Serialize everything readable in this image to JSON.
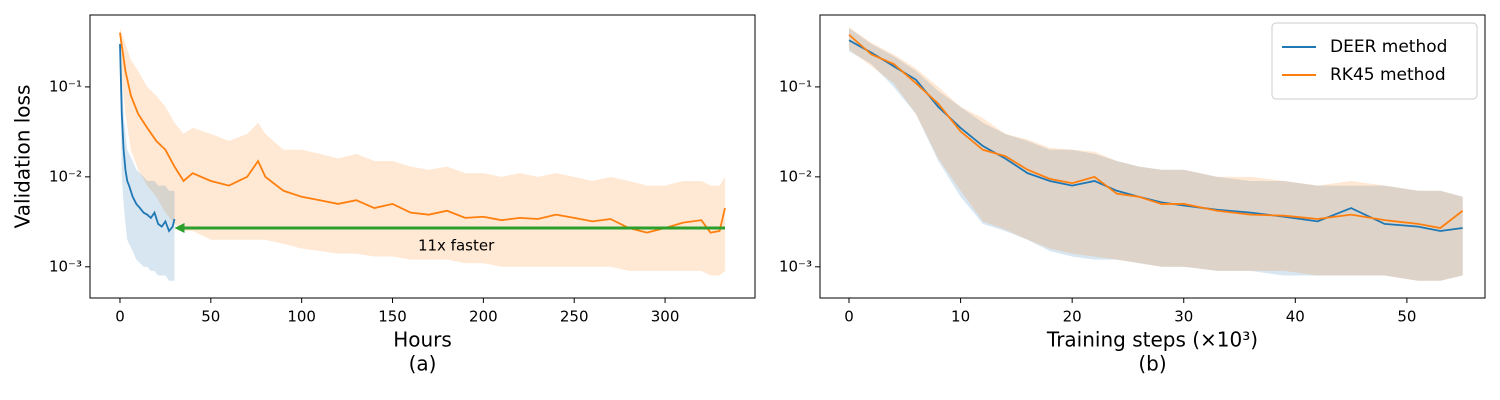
{
  "chart_data": [
    {
      "type": "line",
      "ylabel": "Validation loss",
      "xlabel": "Hours",
      "caption": "(a)",
      "log_y": true,
      "xlim": [
        -16.5,
        349.5
      ],
      "xticks": [
        0,
        50,
        100,
        150,
        200,
        250,
        300
      ],
      "ylim": [
        0.00045,
        0.63
      ],
      "yticks": [
        {
          "value": 0.001,
          "label": "10⁻³"
        },
        {
          "value": 0.01,
          "label": "10⁻²"
        },
        {
          "value": 0.1,
          "label": "10⁻¹"
        }
      ],
      "series": [
        {
          "color": "#ff7f0e",
          "x": [
            0,
            3,
            6,
            10,
            15,
            20,
            25,
            30,
            35,
            40,
            50,
            60,
            70,
            76,
            80,
            90,
            100,
            110,
            120,
            130,
            140,
            150,
            160,
            170,
            180,
            190,
            200,
            210,
            220,
            230,
            240,
            250,
            260,
            270,
            280,
            290,
            300,
            310,
            320,
            325,
            330,
            333
          ],
          "values": [
            0.4,
            0.15,
            0.08,
            0.05,
            0.035,
            0.025,
            0.02,
            0.013,
            0.009,
            0.011,
            0.009,
            0.008,
            0.01,
            0.015,
            0.01,
            0.007,
            0.006,
            0.0055,
            0.005,
            0.0055,
            0.0045,
            0.005,
            0.004,
            0.0038,
            0.0042,
            0.0035,
            0.0036,
            0.0033,
            0.0035,
            0.0034,
            0.0038,
            0.0035,
            0.0032,
            0.0034,
            0.0027,
            0.0024,
            0.0027,
            0.0031,
            0.0033,
            0.0024,
            0.0025,
            0.0045
          ],
          "lower": [
            0.2,
            0.05,
            0.02,
            0.012,
            0.008,
            0.006,
            0.004,
            0.003,
            0.0025,
            0.0025,
            0.002,
            0.002,
            0.002,
            0.002,
            0.002,
            0.0018,
            0.0016,
            0.0015,
            0.0014,
            0.0014,
            0.0013,
            0.0013,
            0.0012,
            0.0012,
            0.0012,
            0.0011,
            0.0011,
            0.001,
            0.001,
            0.001,
            0.001,
            0.001,
            0.001,
            0.001,
            0.0009,
            0.0009,
            0.0009,
            0.0009,
            0.0009,
            0.0008,
            0.0008,
            0.0009
          ],
          "upper": [
            0.45,
            0.3,
            0.2,
            0.15,
            0.1,
            0.08,
            0.06,
            0.04,
            0.03,
            0.035,
            0.03,
            0.025,
            0.03,
            0.04,
            0.03,
            0.02,
            0.02,
            0.018,
            0.016,
            0.018,
            0.015,
            0.015,
            0.013,
            0.012,
            0.013,
            0.011,
            0.011,
            0.01,
            0.011,
            0.01,
            0.011,
            0.01,
            0.009,
            0.01,
            0.009,
            0.008,
            0.008,
            0.009,
            0.009,
            0.008,
            0.008,
            0.01
          ]
        },
        {
          "color": "#1f77b4",
          "x": [
            0,
            1,
            2,
            3,
            4,
            5,
            7,
            9,
            11,
            13,
            15,
            17,
            19,
            21,
            23,
            25,
            27,
            29,
            30
          ],
          "values": [
            0.3,
            0.05,
            0.02,
            0.012,
            0.009,
            0.008,
            0.006,
            0.005,
            0.0045,
            0.004,
            0.0038,
            0.0035,
            0.004,
            0.003,
            0.0028,
            0.0032,
            0.0025,
            0.0028,
            0.0034
          ],
          "lower": [
            0.15,
            0.01,
            0.005,
            0.003,
            0.002,
            0.0018,
            0.0015,
            0.0012,
            0.0011,
            0.001,
            0.001,
            0.0009,
            0.0009,
            0.0008,
            0.0008,
            0.0008,
            0.0007,
            0.0007,
            0.0007
          ],
          "upper": [
            0.4,
            0.15,
            0.05,
            0.03,
            0.02,
            0.018,
            0.015,
            0.012,
            0.011,
            0.01,
            0.009,
            0.009,
            0.009,
            0.008,
            0.008,
            0.008,
            0.007,
            0.007,
            0.007
          ]
        }
      ],
      "arrow": {
        "x_start": 333,
        "x_end": 30,
        "y": 0.0027,
        "color": "#2ca02c"
      },
      "annotation": {
        "text": "11x faster",
        "x": 185,
        "y": 0.0017
      }
    },
    {
      "type": "line",
      "xlabel": "Training steps (×10³)",
      "caption": "(b)",
      "log_y": true,
      "xlim": [
        -2.6,
        57
      ],
      "xticks": [
        0,
        10,
        20,
        30,
        40,
        50
      ],
      "ylim": [
        0.00045,
        0.63
      ],
      "yticks": [
        {
          "value": 0.001,
          "label": "10⁻³"
        },
        {
          "value": 0.01,
          "label": "10⁻²"
        },
        {
          "value": 0.1,
          "label": "10⁻¹"
        }
      ],
      "legend": "upper right",
      "series": [
        {
          "name": "DEER method",
          "color": "#1f77b4",
          "x": [
            0,
            2,
            4,
            6,
            8,
            10,
            12,
            14,
            16,
            18,
            20,
            22,
            24,
            26,
            28,
            30,
            33,
            36,
            39,
            42,
            45,
            48,
            51,
            53,
            55
          ],
          "values": [
            0.33,
            0.24,
            0.17,
            0.12,
            0.06,
            0.035,
            0.022,
            0.016,
            0.011,
            0.009,
            0.008,
            0.009,
            0.007,
            0.006,
            0.0052,
            0.0048,
            0.0043,
            0.004,
            0.0036,
            0.0032,
            0.0045,
            0.003,
            0.0028,
            0.0025,
            0.0027
          ],
          "lower": [
            0.25,
            0.18,
            0.1,
            0.05,
            0.015,
            0.006,
            0.003,
            0.0025,
            0.002,
            0.0015,
            0.0013,
            0.0012,
            0.0012,
            0.0011,
            0.001,
            0.001,
            0.0009,
            0.0009,
            0.0008,
            0.0008,
            0.0008,
            0.0008,
            0.0007,
            0.0007,
            0.0008
          ],
          "upper": [
            0.45,
            0.3,
            0.22,
            0.15,
            0.09,
            0.06,
            0.04,
            0.03,
            0.025,
            0.02,
            0.02,
            0.018,
            0.015,
            0.013,
            0.012,
            0.012,
            0.01,
            0.009,
            0.009,
            0.008,
            0.008,
            0.008,
            0.007,
            0.007,
            0.006
          ]
        },
        {
          "name": "RK45 method",
          "color": "#ff7f0e",
          "x": [
            0,
            2,
            4,
            6,
            8,
            10,
            12,
            14,
            16,
            18,
            20,
            22,
            24,
            26,
            28,
            30,
            33,
            36,
            39,
            42,
            45,
            48,
            51,
            53,
            55
          ],
          "values": [
            0.38,
            0.23,
            0.18,
            0.11,
            0.065,
            0.032,
            0.02,
            0.017,
            0.012,
            0.0095,
            0.0085,
            0.01,
            0.0065,
            0.006,
            0.005,
            0.005,
            0.0042,
            0.0038,
            0.0037,
            0.0034,
            0.0038,
            0.0033,
            0.003,
            0.0027,
            0.0042
          ],
          "lower": [
            0.26,
            0.17,
            0.11,
            0.05,
            0.016,
            0.007,
            0.0032,
            0.0026,
            0.002,
            0.0016,
            0.0014,
            0.0013,
            0.0012,
            0.0011,
            0.001,
            0.001,
            0.0009,
            0.0009,
            0.0009,
            0.0008,
            0.0008,
            0.0008,
            0.0007,
            0.0007,
            0.0008
          ],
          "upper": [
            0.46,
            0.31,
            0.23,
            0.16,
            0.1,
            0.06,
            0.045,
            0.03,
            0.026,
            0.021,
            0.02,
            0.019,
            0.015,
            0.013,
            0.012,
            0.012,
            0.01,
            0.01,
            0.009,
            0.008,
            0.009,
            0.008,
            0.007,
            0.007,
            0.006
          ]
        }
      ]
    }
  ]
}
